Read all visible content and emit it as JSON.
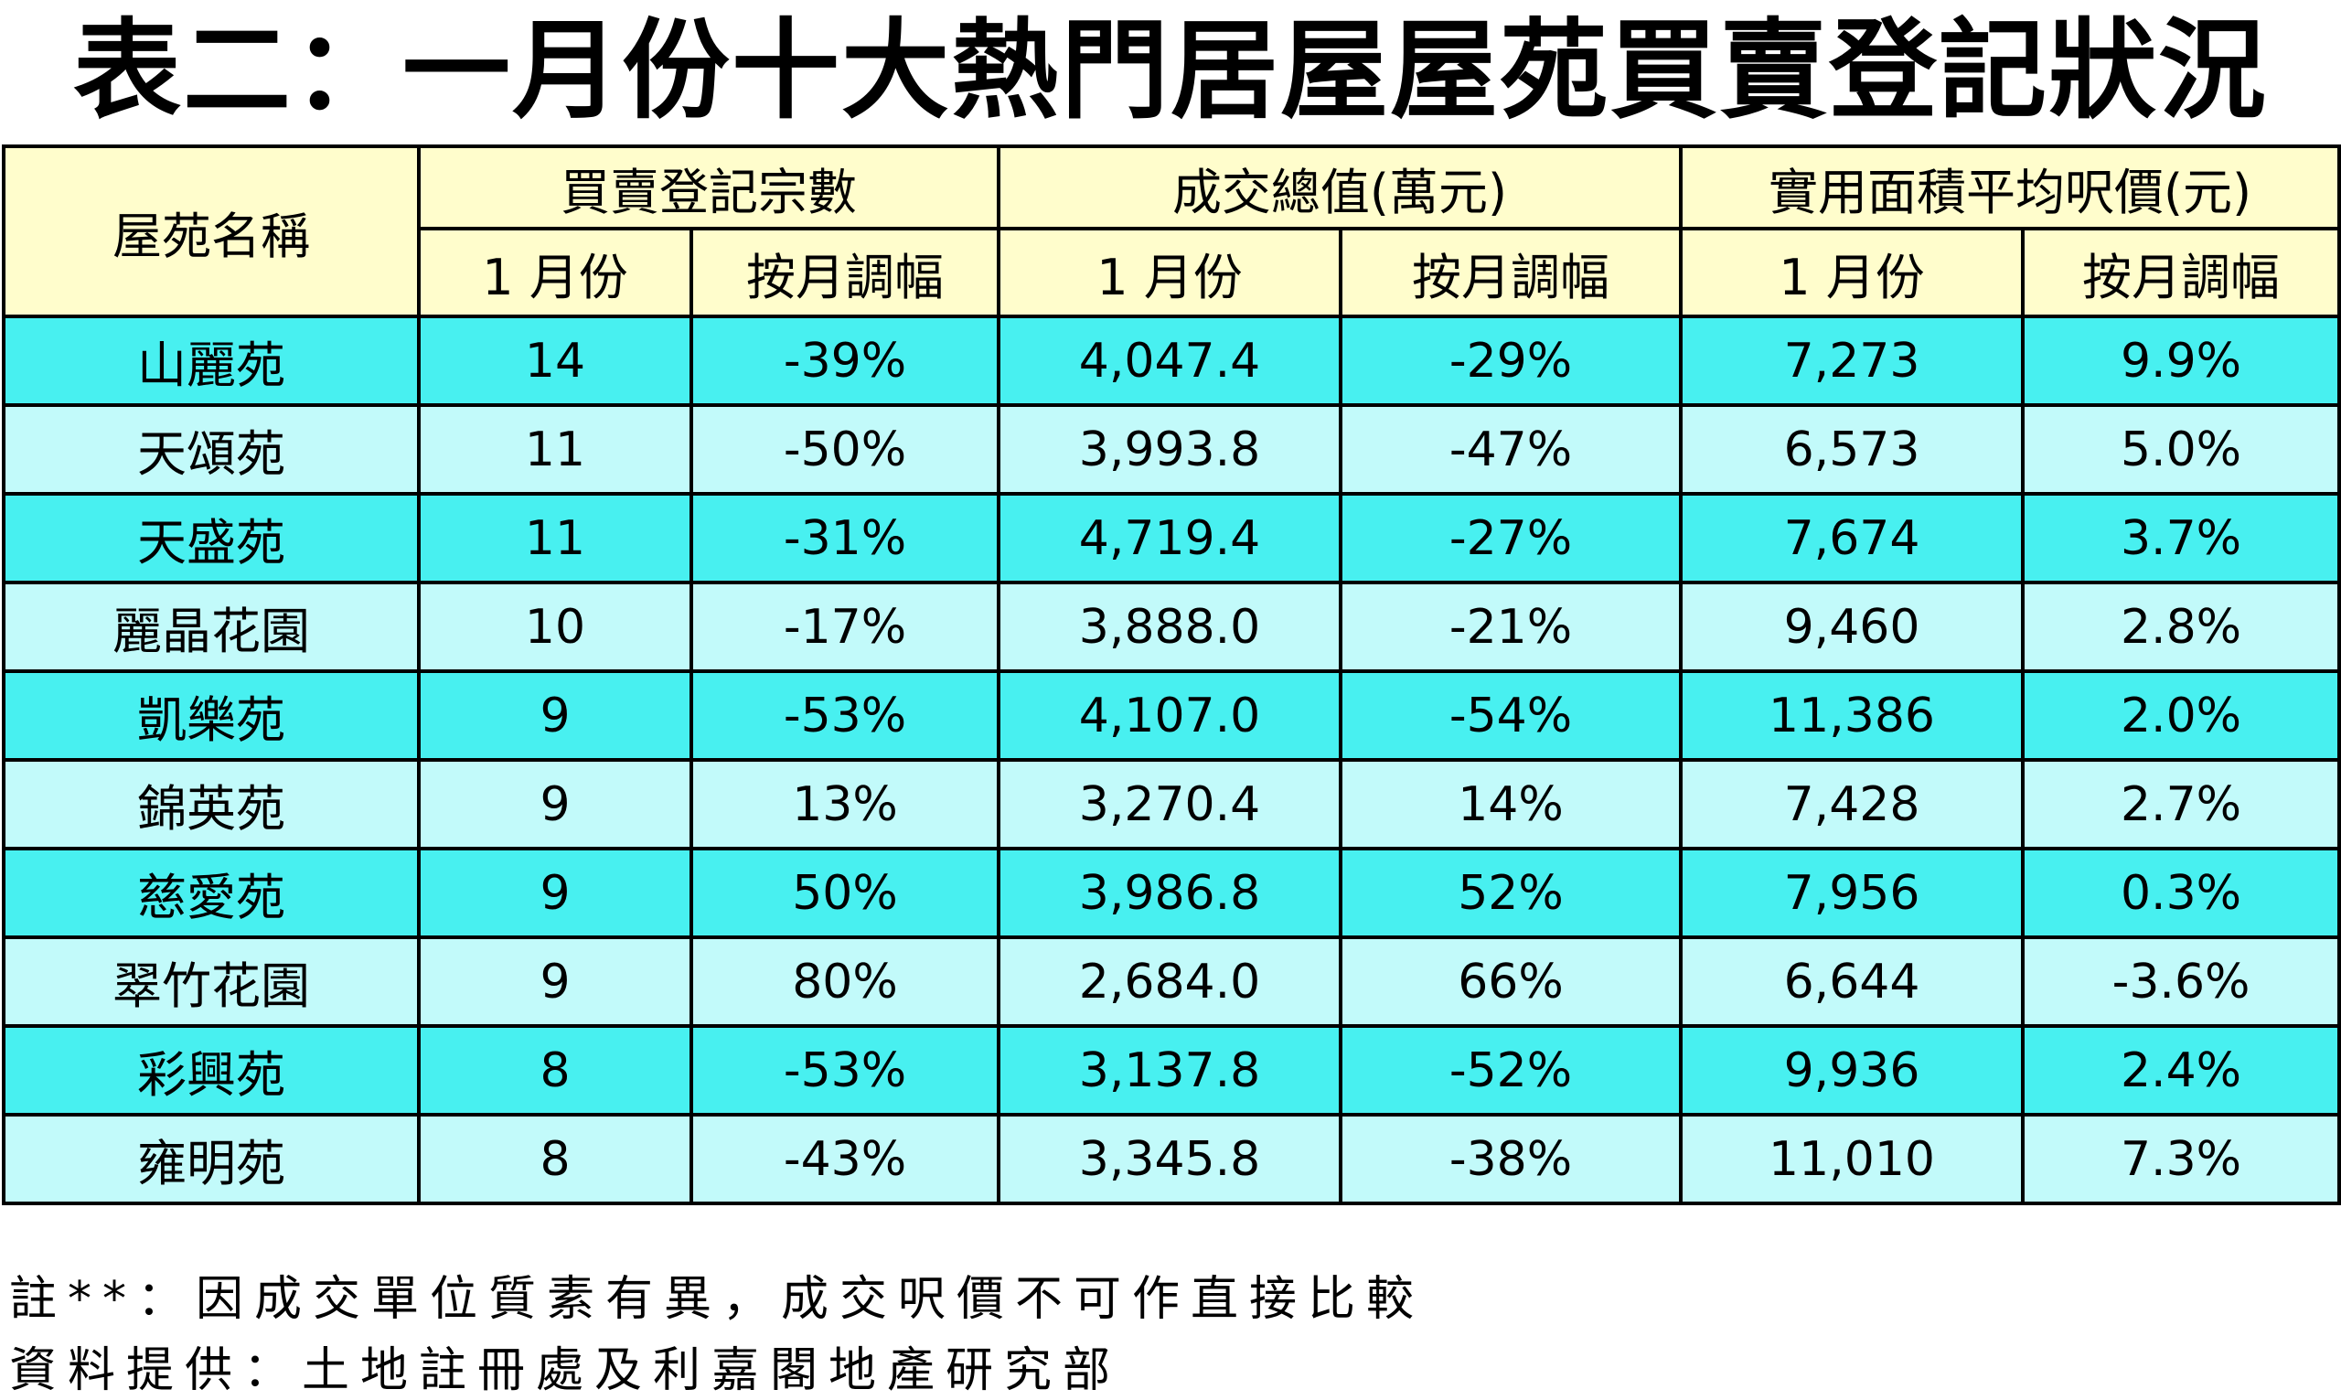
{
  "title": "表二：一月份十大熱門居屋屋苑買賣登記狀況",
  "header": {
    "estate_name": "屋苑名稱",
    "groups": [
      "買賣登記宗數",
      "成交總值(萬元)",
      "實用面積平均呎價(元)"
    ],
    "sub_month": "1 月份",
    "sub_change": "按月調幅"
  },
  "rows": [
    {
      "name": "山麗苑",
      "count": "14",
      "count_chg": "-39%",
      "value": "4,047.4",
      "value_chg": "-29%",
      "price": "7,273",
      "price_chg": "9.9%"
    },
    {
      "name": "天頌苑",
      "count": "11",
      "count_chg": "-50%",
      "value": "3,993.8",
      "value_chg": "-47%",
      "price": "6,573",
      "price_chg": "5.0%"
    },
    {
      "name": "天盛苑",
      "count": "11",
      "count_chg": "-31%",
      "value": "4,719.4",
      "value_chg": "-27%",
      "price": "7,674",
      "price_chg": "3.7%"
    },
    {
      "name": "麗晶花園",
      "count": "10",
      "count_chg": "-17%",
      "value": "3,888.0",
      "value_chg": "-21%",
      "price": "9,460",
      "price_chg": "2.8%"
    },
    {
      "name": "凱樂苑",
      "count": "9",
      "count_chg": "-53%",
      "value": "4,107.0",
      "value_chg": "-54%",
      "price": "11,386",
      "price_chg": "2.0%"
    },
    {
      "name": "錦英苑",
      "count": "9",
      "count_chg": "13%",
      "value": "3,270.4",
      "value_chg": "14%",
      "price": "7,428",
      "price_chg": "2.7%"
    },
    {
      "name": "慈愛苑",
      "count": "9",
      "count_chg": "50%",
      "value": "3,986.8",
      "value_chg": "52%",
      "price": "7,956",
      "price_chg": "0.3%"
    },
    {
      "name": "翠竹花園",
      "count": "9",
      "count_chg": "80%",
      "value": "2,684.0",
      "value_chg": "66%",
      "price": "6,644",
      "price_chg": "-3.6%"
    },
    {
      "name": "彩興苑",
      "count": "8",
      "count_chg": "-53%",
      "value": "3,137.8",
      "value_chg": "-52%",
      "price": "9,936",
      "price_chg": "2.4%"
    },
    {
      "name": "雍明苑",
      "count": "8",
      "count_chg": "-43%",
      "value": "3,345.8",
      "value_chg": "-38%",
      "price": "11,010",
      "price_chg": "7.3%"
    }
  ],
  "colors": {
    "header_bg": "#FFFDCC",
    "row_dark": "#48F0F0",
    "row_light": "#C2FAFA"
  },
  "notes": {
    "note": "註**：因成交單位質素有異，成交呎價不可作直接比較",
    "source": "資料提供：土地註冊處及利嘉閣地產研究部"
  }
}
